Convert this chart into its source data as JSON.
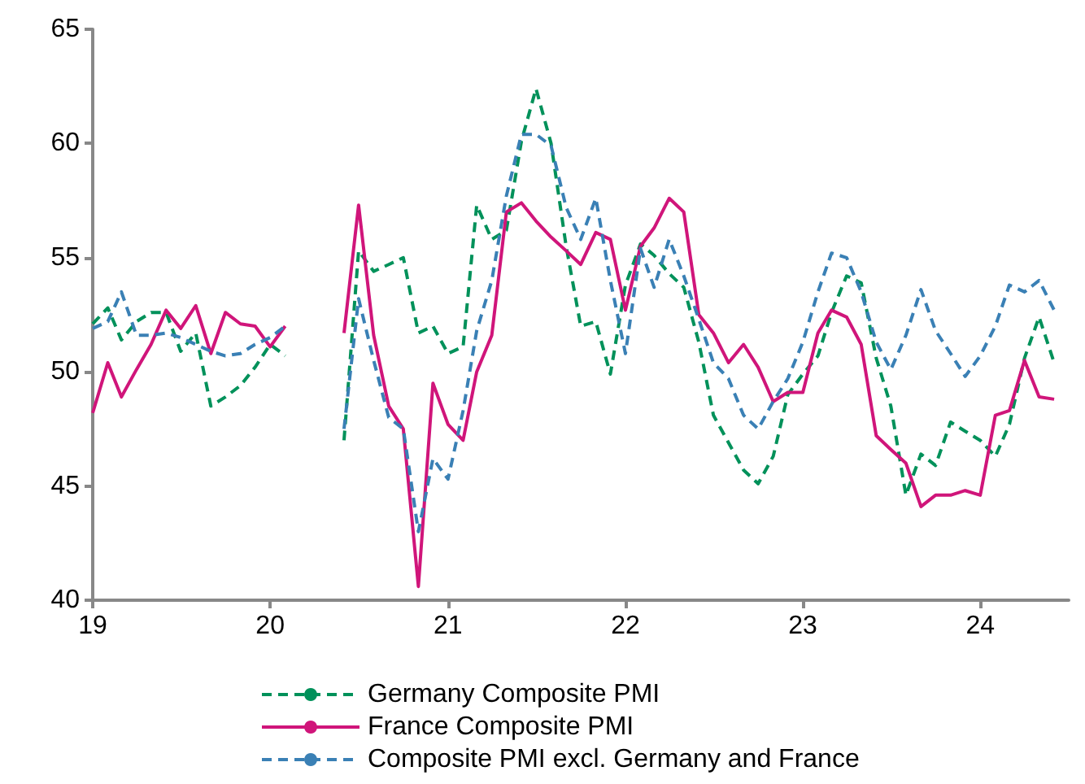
{
  "chart_data": {
    "type": "line",
    "x": [
      "2019-01",
      "2019-02",
      "2019-03",
      "2019-04",
      "2019-05",
      "2019-06",
      "2019-07",
      "2019-08",
      "2019-09",
      "2019-10",
      "2019-11",
      "2019-12",
      "2020-01",
      "2020-02",
      "2020-03",
      "2020-04",
      "2020-05",
      "2020-06",
      "2020-07",
      "2020-08",
      "2020-09",
      "2020-10",
      "2020-11",
      "2020-12",
      "2021-01",
      "2021-02",
      "2021-03",
      "2021-04",
      "2021-05",
      "2021-06",
      "2021-07",
      "2021-08",
      "2021-09",
      "2021-10",
      "2021-11",
      "2021-12",
      "2022-01",
      "2022-02",
      "2022-03",
      "2022-04",
      "2022-05",
      "2022-06",
      "2022-07",
      "2022-08",
      "2022-09",
      "2022-10",
      "2022-11",
      "2022-12",
      "2023-01",
      "2023-02",
      "2023-03",
      "2023-04",
      "2023-05",
      "2023-06",
      "2023-07",
      "2023-08",
      "2023-09",
      "2023-10",
      "2023-11",
      "2023-12",
      "2024-01",
      "2024-02",
      "2024-03",
      "2024-04",
      "2024-05",
      "2024-06"
    ],
    "series": [
      {
        "name": "Germany Composite PMI",
        "color": "#00915a",
        "line_style": "dashed",
        "values": [
          52.1,
          52.8,
          51.4,
          52.2,
          52.6,
          52.6,
          50.9,
          51.7,
          48.5,
          48.9,
          49.4,
          50.2,
          51.2,
          50.7,
          null,
          null,
          null,
          47.0,
          55.3,
          54.4,
          54.7,
          55.0,
          51.7,
          52.0,
          50.8,
          51.1,
          57.3,
          55.8,
          56.2,
          60.1,
          62.4,
          60.0,
          55.5,
          52.0,
          52.2,
          49.9,
          53.8,
          55.6,
          55.1,
          54.3,
          53.7,
          51.3,
          48.1,
          46.9,
          45.7,
          45.1,
          46.3,
          49.0,
          49.9,
          50.7,
          52.6,
          54.2,
          53.9,
          50.6,
          48.5,
          44.6,
          46.4,
          45.9,
          47.8,
          47.4,
          47.0,
          46.3,
          47.7,
          50.6,
          52.4,
          50.4
        ]
      },
      {
        "name": "France Composite PMI",
        "color": "#d0157a",
        "line_style": "solid",
        "values": [
          48.2,
          50.4,
          48.9,
          50.1,
          51.2,
          52.7,
          51.9,
          52.9,
          50.8,
          52.6,
          52.1,
          52.0,
          51.1,
          52.0,
          null,
          null,
          null,
          51.7,
          57.3,
          51.6,
          48.5,
          47.5,
          40.6,
          49.5,
          47.7,
          47.0,
          50.0,
          51.6,
          57.0,
          57.4,
          56.6,
          55.9,
          55.3,
          54.7,
          56.1,
          55.8,
          52.7,
          55.5,
          56.3,
          57.6,
          57.0,
          52.5,
          51.7,
          50.4,
          51.2,
          50.2,
          48.7,
          49.1,
          49.1,
          51.7,
          52.7,
          52.4,
          51.2,
          47.2,
          46.6,
          46.0,
          44.1,
          44.6,
          44.6,
          44.8,
          44.6,
          48.1,
          48.3,
          50.5,
          48.9,
          48.8
        ]
      },
      {
        "name": "Composite PMI excl. Germany and France",
        "color": "#3a80b5",
        "line_style": "dashed",
        "values": [
          51.9,
          52.2,
          53.5,
          51.6,
          51.6,
          51.7,
          51.5,
          51.2,
          50.9,
          50.7,
          50.8,
          51.2,
          51.5,
          52.0,
          null,
          null,
          null,
          47.5,
          53.2,
          50.5,
          48.0,
          47.5,
          43.0,
          46.2,
          45.3,
          48.3,
          51.8,
          54.0,
          57.7,
          60.4,
          60.4,
          59.9,
          57.2,
          55.8,
          57.6,
          54.0,
          50.8,
          55.4,
          53.7,
          55.8,
          54.2,
          52.3,
          50.4,
          49.7,
          48.1,
          47.5,
          48.7,
          49.7,
          51.3,
          53.5,
          55.2,
          55.0,
          53.5,
          51.3,
          50.1,
          51.6,
          53.6,
          51.8,
          50.8,
          49.8,
          50.7,
          52.0,
          53.8,
          53.5,
          54.0,
          52.7
        ]
      }
    ],
    "xlim": [
      "2019-01",
      "2024-07"
    ],
    "xticks": [
      {
        "value": "2019-01",
        "label": "19"
      },
      {
        "value": "2020-01",
        "label": "20"
      },
      {
        "value": "2021-01",
        "label": "21"
      },
      {
        "value": "2022-01",
        "label": "22"
      },
      {
        "value": "2023-01",
        "label": "23"
      },
      {
        "value": "2024-01",
        "label": "24"
      }
    ],
    "ylim": [
      40,
      65
    ],
    "yticks": [
      40,
      45,
      50,
      55,
      60,
      65
    ],
    "grid": false,
    "legend": "bottom",
    "marker": "none"
  }
}
